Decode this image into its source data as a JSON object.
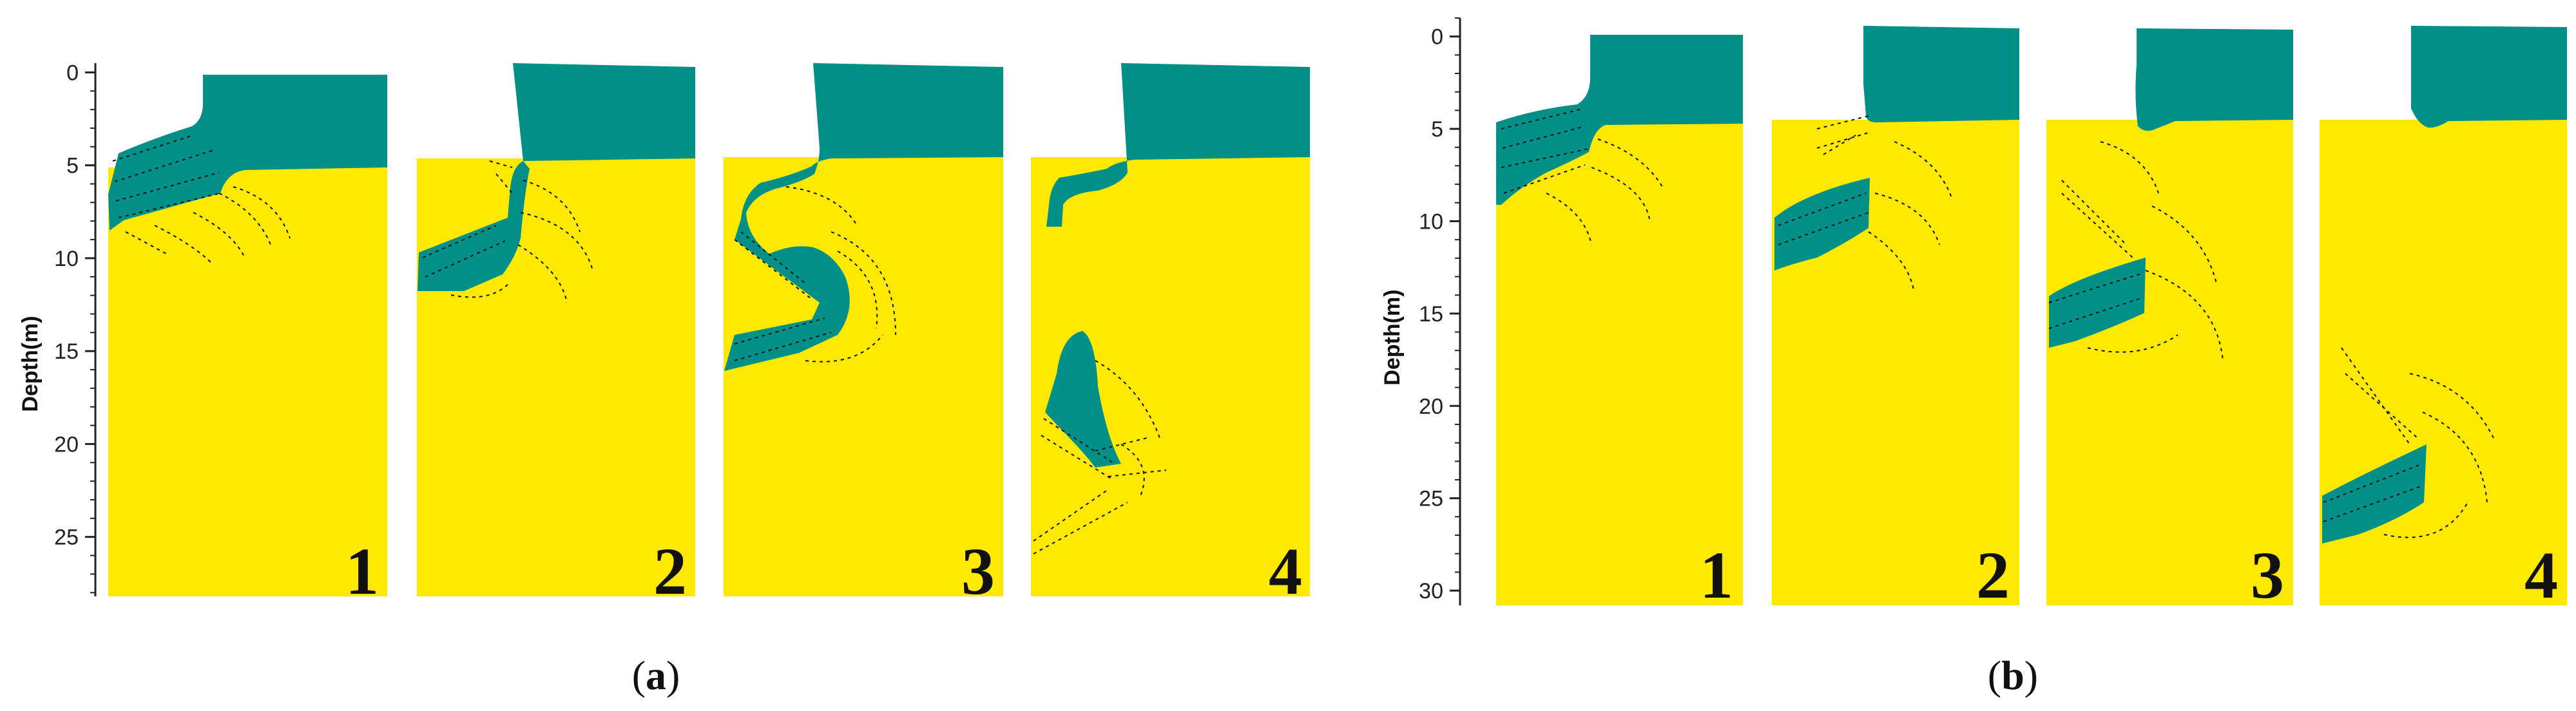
{
  "colors": {
    "sand": "#FFE900",
    "slurry": "#009088",
    "vector": "#111111",
    "axis": "#222222"
  },
  "panels": [
    {
      "caption_letter": "a",
      "axis": {
        "title": "Depth(m)",
        "ticks": [
          "0",
          "5",
          "10",
          "15",
          "20",
          "25"
        ],
        "tick_values": [
          0,
          5,
          10,
          15,
          20,
          25
        ],
        "range": [
          -0.5,
          28.2
        ]
      },
      "frames": [
        "1",
        "2",
        "3",
        "4"
      ]
    },
    {
      "caption_letter": "b",
      "axis": {
        "title": "Depth(m)",
        "ticks": [
          "0",
          "5",
          "10",
          "15",
          "20",
          "25",
          "30"
        ],
        "tick_values": [
          0,
          5,
          10,
          15,
          20,
          25,
          30
        ],
        "range": [
          -1.0,
          30.8
        ]
      },
      "frames": [
        "1",
        "2",
        "3",
        "4"
      ]
    }
  ]
}
